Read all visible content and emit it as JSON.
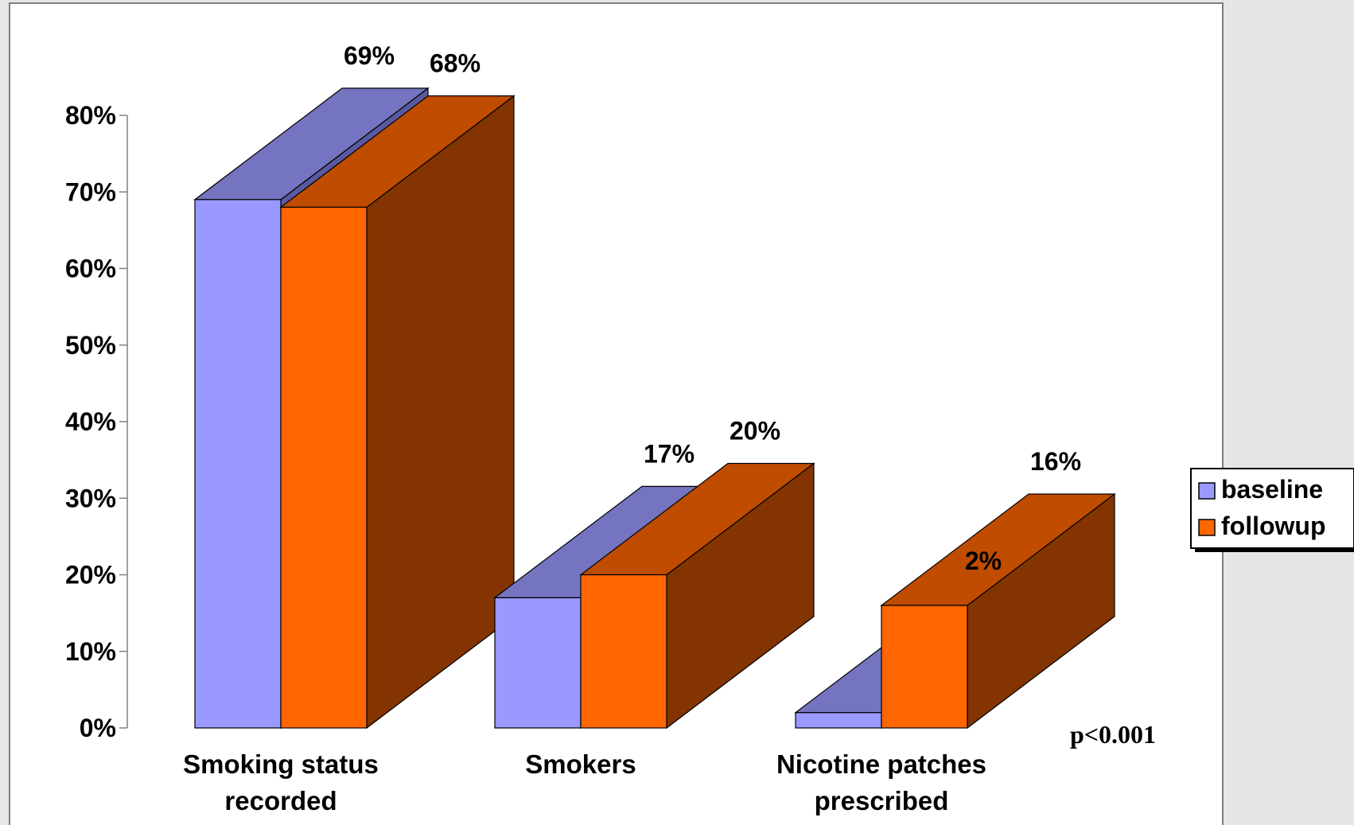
{
  "chart_data": {
    "type": "bar",
    "style": "3d-clustered",
    "categories": [
      [
        "Smoking status",
        "recorded"
      ],
      [
        "Smokers"
      ],
      [
        "Nicotine patches",
        "prescribed"
      ]
    ],
    "series": [
      {
        "name": "baseline",
        "values": [
          69,
          17,
          2
        ],
        "labels": [
          "69%",
          "17%",
          "2%"
        ],
        "color": "#9999ff",
        "top_color": "#7474c0",
        "side_color": "#5a5aa0"
      },
      {
        "name": "followup",
        "values": [
          68,
          20,
          16
        ],
        "labels": [
          "68%",
          "20%",
          "16%"
        ],
        "color": "#ff6600",
        "top_color": "#c04c00",
        "side_color": "#833400"
      }
    ],
    "ylim": [
      0,
      80
    ],
    "yticks": [
      0,
      10,
      20,
      30,
      40,
      50,
      60,
      70,
      80
    ],
    "ytick_labels": [
      "0%",
      "10%",
      "20%",
      "30%",
      "40%",
      "50%",
      "60%",
      "70%",
      "80%"
    ],
    "annotation": "p<0.001",
    "legend_position": "right",
    "grid": false
  }
}
